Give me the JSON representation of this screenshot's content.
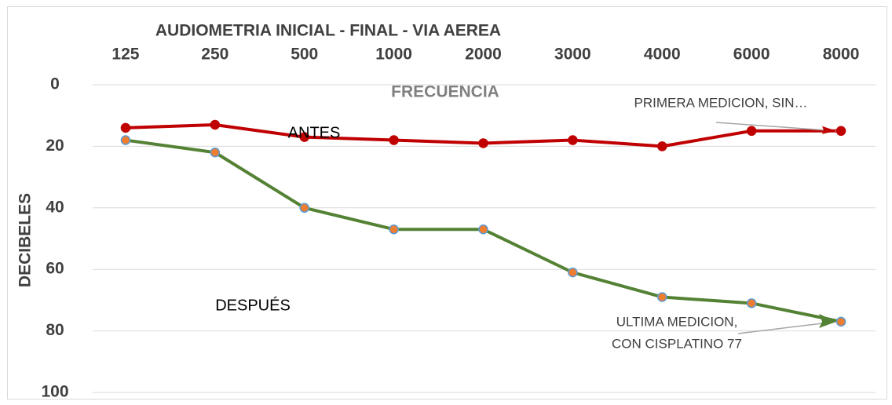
{
  "chart_data": {
    "type": "line",
    "title": "AUDIOMETRIA INICIAL - FINAL -  VIA AEREA",
    "x_label": "FRECUENCIA",
    "y_label": "DECIBELES",
    "categories": [
      "125",
      "250",
      "500",
      "1000",
      "2000",
      "3000",
      "4000",
      "6000",
      "8000"
    ],
    "series": [
      {
        "name": "ANTES",
        "color": "#c00000",
        "marker_color": "#c00000",
        "values": [
          14,
          13,
          17,
          18,
          19,
          18,
          20,
          15,
          15
        ]
      },
      {
        "name": "DESPUÉS",
        "color": "#548235",
        "marker_color": "#ed7d31",
        "values": [
          18,
          22,
          40,
          47,
          47,
          61,
          69,
          71,
          77
        ]
      }
    ],
    "annotations": [
      {
        "text": "PRIMERA MEDICION, SIN…",
        "series": 0
      },
      {
        "text": [
          "ULTIMA MEDICION,",
          "CON CISPLATINO 77"
        ],
        "series": 1
      }
    ],
    "ylim": [
      0,
      100
    ],
    "yticks": [
      0,
      20,
      40,
      60,
      80,
      100
    ],
    "y_inverted": true,
    "x_axis_position": "top",
    "grid": true
  }
}
